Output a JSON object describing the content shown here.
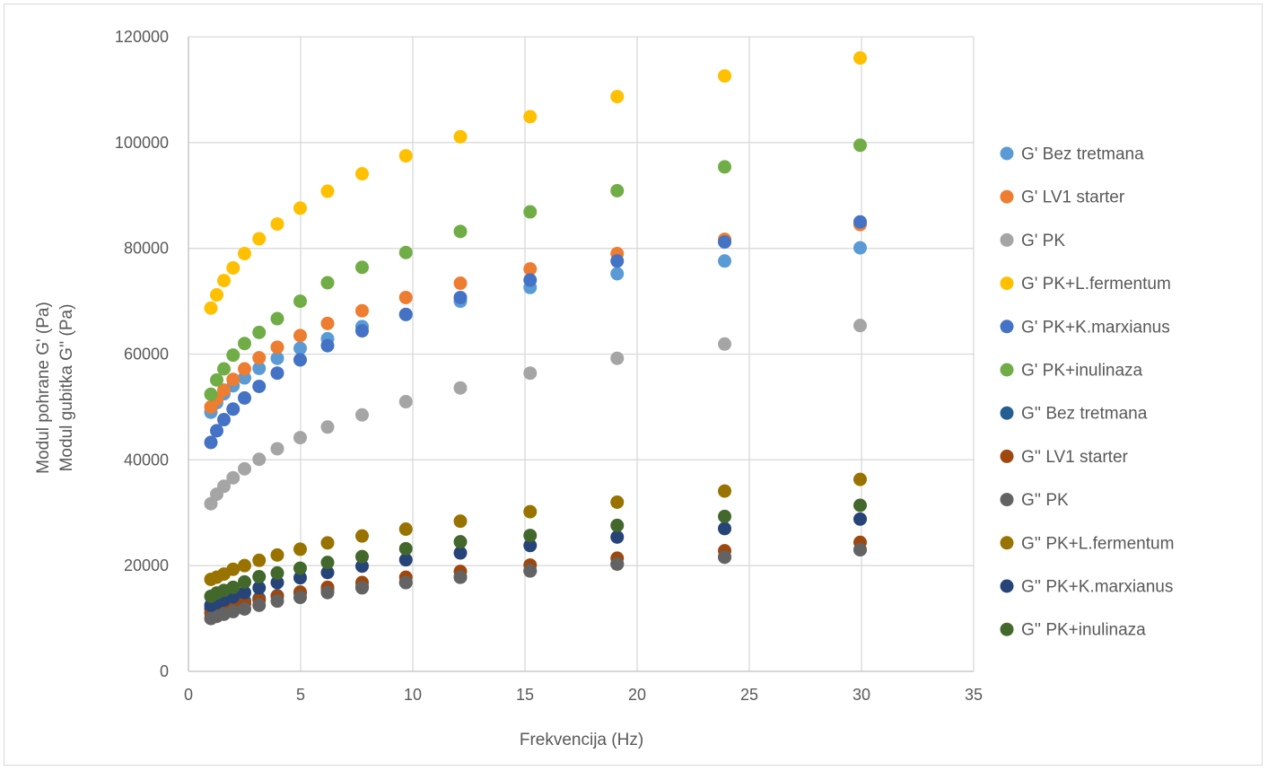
{
  "chart_data": {
    "type": "scatter",
    "title": "",
    "xlabel": "Frekvencija (Hz)",
    "ylabel_lines": [
      "Modul pohrane G' (Pa)",
      "Modul gubitka G'' (Pa)"
    ],
    "xlim": [
      0,
      35
    ],
    "ylim": [
      0,
      120000
    ],
    "x_ticks": [
      0,
      5,
      10,
      15,
      20,
      25,
      30,
      35
    ],
    "y_ticks": [
      0,
      20000,
      40000,
      60000,
      80000,
      100000,
      120000
    ],
    "grid": true,
    "legend_position": "right",
    "x": [
      1.0,
      1.26,
      1.58,
      1.99,
      2.5,
      3.15,
      3.96,
      4.98,
      6.2,
      7.74,
      9.69,
      12.12,
      15.23,
      19.11,
      23.9,
      29.94
    ],
    "series": [
      {
        "name": "G' Bez tretmana",
        "color": "#5B9BD5",
        "values": [
          49000,
          50800,
          52500,
          54000,
          55500,
          57300,
          59200,
          61100,
          62900,
          65200,
          67500,
          70000,
          72600,
          75200,
          77600,
          80100
        ]
      },
      {
        "name": "G' LV1 starter",
        "color": "#ED7D31",
        "values": [
          50000,
          51500,
          53200,
          55200,
          57200,
          59300,
          61300,
          63500,
          65800,
          68200,
          70700,
          73400,
          76100,
          79000,
          81700,
          84500
        ]
      },
      {
        "name": "G' PK",
        "color": "#A5A5A5",
        "values": [
          31700,
          33500,
          35000,
          36600,
          38300,
          40100,
          42100,
          44200,
          46200,
          48500,
          51000,
          53600,
          56400,
          59200,
          61900,
          65400
        ]
      },
      {
        "name": "G' PK+L.fermentum",
        "color": "#FFC000",
        "values": [
          68700,
          71200,
          73900,
          76300,
          79000,
          81800,
          84600,
          87600,
          90800,
          94100,
          97500,
          101100,
          104900,
          108700,
          112600,
          116000
        ]
      },
      {
        "name": "G' PK+K.marxianus",
        "color": "#4472C4",
        "values": [
          43300,
          45500,
          47600,
          49600,
          51700,
          53900,
          56400,
          58900,
          61600,
          64400,
          67500,
          70700,
          74000,
          77600,
          81200,
          85000
        ]
      },
      {
        "name": "G' PK+inulinaza",
        "color": "#70AD47",
        "values": [
          52400,
          55100,
          57200,
          59800,
          62000,
          64100,
          66700,
          70000,
          73500,
          76400,
          79200,
          83200,
          86900,
          90900,
          95400,
          99500
        ]
      },
      {
        "name": "G'' Bez tretmana",
        "color": "#255E91",
        "values": [
          11800,
          12100,
          12500,
          12900,
          13300,
          13800,
          14300,
          14800,
          15400,
          16000,
          16800,
          17800,
          19000,
          20300,
          21600,
          23000
        ]
      },
      {
        "name": "G'' LV1 starter",
        "color": "#9E480E",
        "values": [
          11000,
          11400,
          11800,
          12300,
          12800,
          13500,
          14200,
          15000,
          15900,
          16800,
          17800,
          18900,
          20100,
          21400,
          22800,
          24400
        ]
      },
      {
        "name": "G'' PK",
        "color": "#636363",
        "values": [
          10000,
          10400,
          10800,
          11300,
          11800,
          12500,
          13300,
          14000,
          14900,
          15800,
          16800,
          17800,
          19000,
          20300,
          21600,
          23000
        ]
      },
      {
        "name": "G'' PK+L.fermentum",
        "color": "#997300",
        "values": [
          17400,
          17800,
          18400,
          19300,
          20000,
          21000,
          22000,
          23100,
          24300,
          25600,
          26900,
          28400,
          30200,
          32000,
          34100,
          36300
        ]
      },
      {
        "name": "G'' PK+K.marxianus",
        "color": "#264478",
        "values": [
          12500,
          13000,
          13500,
          14100,
          14900,
          15800,
          16800,
          17700,
          18700,
          19900,
          21100,
          22400,
          23800,
          25400,
          27000,
          28800
        ]
      },
      {
        "name": "G'' PK+inulinaza",
        "color": "#43682B",
        "values": [
          14200,
          14800,
          15300,
          15900,
          16900,
          17900,
          18600,
          19500,
          20600,
          21700,
          23200,
          24500,
          25700,
          27600,
          29300,
          31400
        ]
      }
    ]
  }
}
